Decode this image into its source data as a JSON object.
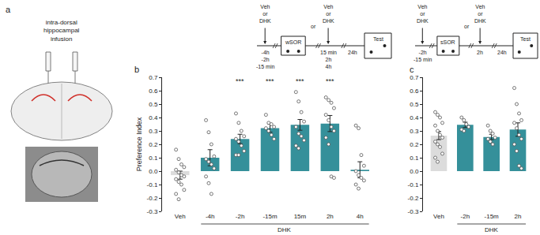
{
  "chart_data": [
    {
      "type": "bar",
      "title": "b",
      "y_label": "Preference Index",
      "categories": [
        "Veh",
        "-4h",
        "-2h",
        "-15m",
        "15m",
        "2h",
        "4h"
      ],
      "values": [
        -0.03,
        0.1,
        0.24,
        0.32,
        0.345,
        0.355,
        0.01
      ],
      "errors": [
        0.03,
        0.06,
        0.035,
        0.03,
        0.04,
        0.06,
        0.06
      ],
      "colors": [
        "#dcdcdc",
        "#35909a",
        "#35909a",
        "#35909a",
        "#35909a",
        "#35909a",
        "#35909a"
      ],
      "points": [
        [
          0.16,
          0.09,
          0.05,
          0.03,
          0.01,
          -0.01,
          -0.03,
          -0.04,
          -0.06,
          -0.08,
          -0.1,
          -0.14,
          -0.17,
          -0.21
        ],
        [
          0.38,
          0.29,
          0.2,
          0.11,
          0.09,
          0.07,
          0.05,
          0.02,
          -0.04,
          -0.09,
          -0.17
        ],
        [
          0.43,
          0.36,
          0.3,
          0.26,
          0.24,
          0.22,
          0.19,
          0.15,
          0.12,
          0.12
        ],
        [
          0.42,
          0.36,
          0.35,
          0.33,
          0.32,
          0.3,
          0.27,
          0.24
        ],
        [
          0.59,
          0.52,
          0.44,
          0.37,
          0.33,
          0.28,
          0.26,
          0.23,
          0.19,
          0.17
        ],
        [
          0.55,
          0.53,
          0.51,
          0.47,
          0.42,
          0.38,
          0.33,
          0.3,
          0.25,
          0.2,
          -0.04,
          -0.05
        ],
        [
          0.34,
          0.32,
          0.12,
          0.04,
          0.0,
          -0.03,
          -0.05,
          -0.07,
          -0.1,
          -0.13
        ]
      ],
      "ylim": [
        -0.3,
        0.7
      ],
      "yticks": [
        -0.3,
        -0.2,
        -0.1,
        {
          "value": 0,
          "label": "0.0"
        },
        0.1,
        0.2,
        0.3,
        0.4,
        0.5,
        0.6,
        0.7
      ],
      "grid": false,
      "annotations": [
        {
          "text": "***",
          "category": "-2h"
        },
        {
          "text": "***",
          "category": "-15m"
        },
        {
          "text": "***",
          "category": "15m"
        },
        {
          "text": "***",
          "category": "2h"
        },
        {
          "text": "DHK",
          "from": "-4h",
          "to": "4h"
        }
      ]
    },
    {
      "type": "bar",
      "title": "c",
      "categories": [
        "Veh",
        "-2h",
        "-15m",
        "2h"
      ],
      "values": [
        0.265,
        0.345,
        0.255,
        0.31
      ],
      "errors": [
        0.03,
        0.02,
        0.02,
        0.05
      ],
      "colors": [
        "#dcdcdc",
        "#35909a",
        "#35909a",
        "#35909a"
      ],
      "points": [
        [
          0.44,
          0.42,
          0.4,
          0.36,
          0.34,
          0.3,
          0.27,
          0.25,
          0.22,
          0.2,
          0.18,
          0.13,
          0.1,
          0.07
        ],
        [
          0.4,
          0.38,
          0.35,
          0.33,
          0.31,
          0.3
        ],
        [
          0.34,
          0.3,
          0.28,
          0.25,
          0.24,
          0.22,
          0.2
        ],
        [
          0.62,
          0.5,
          0.43,
          0.38,
          0.36,
          0.32,
          0.27,
          0.24,
          0.2,
          0.15,
          0.04,
          0.02
        ]
      ],
      "ylim": [
        -0.3,
        0.7
      ],
      "yticks": [
        -0.3,
        -0.2,
        -0.1,
        {
          "value": 0,
          "label": "0.0"
        },
        0.1,
        0.2,
        0.3,
        0.4,
        0.5,
        0.6,
        0.7
      ],
      "grid": false,
      "annotations": [
        {
          "text": "DHK",
          "from": "-2h",
          "to": "2h"
        }
      ]
    }
  ],
  "panel_a": {
    "label": "a",
    "title": [
      "intra-dorsal",
      "hippocampal",
      "infusion"
    ]
  },
  "timelines": [
    {
      "infusion_before": [
        "Veh",
        "or",
        "DHK"
      ],
      "times_before": [
        "-4h",
        "-2h",
        "-15 min"
      ],
      "training": "wSOR",
      "or": "or",
      "infusion_after": [
        "Veh",
        "or",
        "DHK"
      ],
      "times_after": [
        "15 min",
        "2h",
        "4h"
      ],
      "delay": "24h",
      "test": "Test"
    },
    {
      "infusion_before": [
        "Veh",
        "or",
        "DHK"
      ],
      "times_before": [
        "-2h",
        "-15 min"
      ],
      "training": "sSOR",
      "or": "or",
      "infusion_after": [
        "Veh",
        "or",
        "DHK"
      ],
      "times_after": [
        "2h"
      ],
      "delay": "24h",
      "test": "Test"
    }
  ]
}
